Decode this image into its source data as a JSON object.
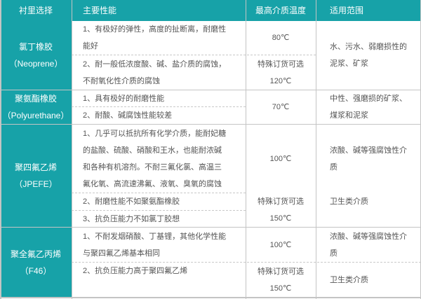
{
  "header": {
    "lining": "衬里选择",
    "properties": "主要性能",
    "max_temp": "最高介质温度",
    "scope": "适用范围"
  },
  "rows": [
    {
      "name": "氯丁橡胶\n（Neoprene）",
      "props": [
        "1、有极好的弹性，高度的扯断离，耐磨性\n能好",
        "2、耐一般低浓度酸、碱、盐介质的腐蚀，\n不耐氧化性介质的腐蚀"
      ],
      "temps": [
        "80℃",
        "特殊订货可选\n120℃"
      ],
      "scope": [
        "水、污水、弱磨损性的\n泥浆、矿浆"
      ]
    },
    {
      "name": "聚氨酯橡胶\n（Polyurethane）",
      "props": [
        "1、具有极好的耐磨性能",
        "2、耐酸、碱腐蚀性能较差"
      ],
      "temps": [
        "70℃"
      ],
      "scope": [
        "中性、强磨损的矿浆、\n煤浆和泥浆"
      ]
    },
    {
      "name": "聚四氟乙烯\n（JPEFE）",
      "props": [
        "1、几乎可以抵抗所有化学介质，能耐妃糖\n的盐酸、硫酸、硝酸和王水，也能耐浓碱\n和各种有机溶剂。不耐三氟化氯、高温三\n氟化氧、高流速沸氟、液氧、臭氧的腐蚀",
        "2、耐磨性能不如聚氨酯橡胶",
        "3、抗负压能力不如氯丁胶想"
      ],
      "temps": [
        "100℃",
        "特殊订货可选\n150℃"
      ],
      "scope": [
        "浓酸、碱等强腐蚀性介\n质",
        "卫生类介质"
      ]
    },
    {
      "name": "聚全氟乙丙烯\n（F46）",
      "props": [
        "1、不耐发烟硝酸、丁基锂，其他化学性能\n与聚四氟乙烯基本相同",
        "2、抗负压能力高于聚四氟乙烯"
      ],
      "temps": [
        "100℃",
        "特殊订货可选\n150℃"
      ],
      "scope": [
        "浓酸、碱等强腐蚀性介\n质",
        "卫生类介质"
      ]
    }
  ],
  "colors": {
    "header_bg": "#17a2a8",
    "border": "#c4c4c4"
  }
}
